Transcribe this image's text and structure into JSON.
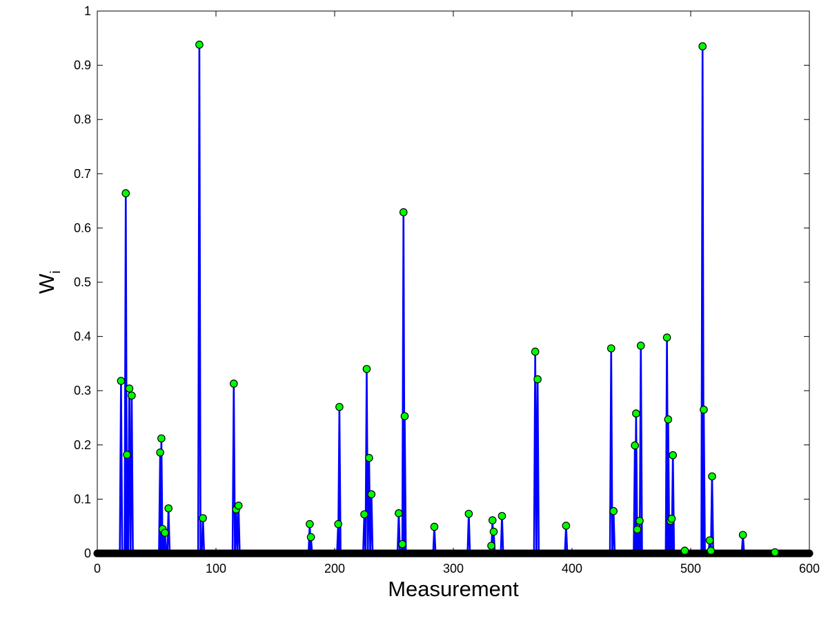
{
  "chart_data": {
    "type": "line",
    "title": "",
    "xlabel": "Measurement",
    "ylabel": "W",
    "ylabel_subscript": "i",
    "xlim": [
      0,
      600
    ],
    "ylim": [
      0,
      1
    ],
    "xticks": [
      0,
      100,
      200,
      300,
      400,
      500,
      600
    ],
    "yticks": [
      0,
      0.1,
      0.2,
      0.3,
      0.4,
      0.5,
      0.6,
      0.7,
      0.8,
      0.9,
      1
    ],
    "xtick_labels": [
      "0",
      "100",
      "200",
      "300",
      "400",
      "500",
      "600"
    ],
    "ytick_labels": [
      "0",
      "0.1",
      "0.2",
      "0.3",
      "0.4",
      "0.5",
      "0.6",
      "0.7",
      "0.8",
      "0.9",
      "1"
    ],
    "grid": false,
    "colors": {
      "line": "#0000ff",
      "marker_fill": "#00ff00",
      "marker_edge": "#000000",
      "baseline": "#000000"
    },
    "series": [
      {
        "points": [
          [
            20,
            0.318
          ],
          [
            24,
            0.664
          ],
          [
            25,
            0.182
          ],
          [
            27,
            0.304
          ],
          [
            29,
            0.291
          ],
          [
            53,
            0.186
          ],
          [
            54,
            0.212
          ],
          [
            55,
            0.045
          ],
          [
            57,
            0.038
          ],
          [
            60,
            0.083
          ],
          [
            86,
            0.938
          ],
          [
            89,
            0.065
          ],
          [
            115,
            0.313
          ],
          [
            117,
            0.081
          ],
          [
            119,
            0.088
          ],
          [
            179,
            0.054
          ],
          [
            180,
            0.03
          ],
          [
            203,
            0.054
          ],
          [
            204,
            0.27
          ],
          [
            225,
            0.072
          ],
          [
            227,
            0.34
          ],
          [
            229,
            0.176
          ],
          [
            231,
            0.109
          ],
          [
            254,
            0.074
          ],
          [
            257,
            0.017
          ],
          [
            258,
            0.629
          ],
          [
            259,
            0.253
          ],
          [
            284,
            0.049
          ],
          [
            313,
            0.073
          ],
          [
            332,
            0.014
          ],
          [
            333,
            0.061
          ],
          [
            334,
            0.04
          ],
          [
            341,
            0.069
          ],
          [
            369,
            0.372
          ],
          [
            371,
            0.321
          ],
          [
            395,
            0.051
          ],
          [
            433,
            0.378
          ],
          [
            435,
            0.078
          ],
          [
            453,
            0.199
          ],
          [
            454,
            0.258
          ],
          [
            455,
            0.044
          ],
          [
            457,
            0.06
          ],
          [
            458,
            0.383
          ],
          [
            480,
            0.398
          ],
          [
            481,
            0.247
          ],
          [
            483,
            0.06
          ],
          [
            484,
            0.064
          ],
          [
            485,
            0.181
          ],
          [
            495,
            0.005
          ],
          [
            510,
            0.935
          ],
          [
            511,
            0.265
          ],
          [
            516,
            0.024
          ],
          [
            517,
            0.005
          ],
          [
            518,
            0.142
          ],
          [
            544,
            0.034
          ],
          [
            571,
            0.002
          ]
        ]
      }
    ]
  }
}
